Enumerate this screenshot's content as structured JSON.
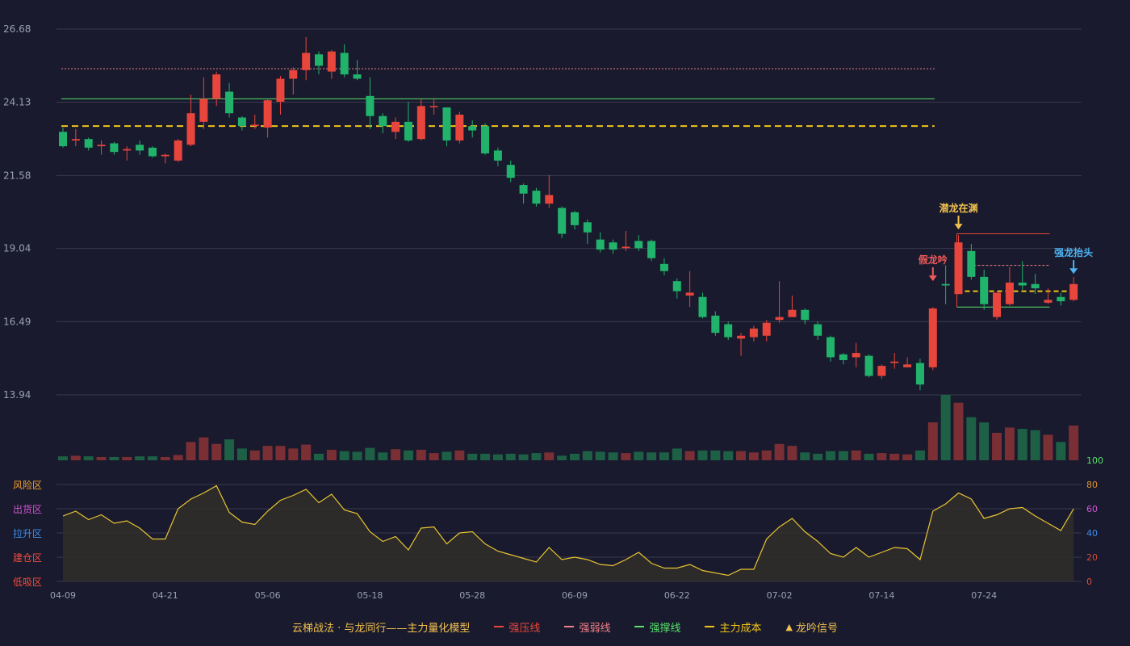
{
  "colors": {
    "background": "#191a2d",
    "grid": "#3a3b4f",
    "axis_text": "#9aa0b0",
    "up": "#e8453c",
    "down": "#21b36b",
    "vol_up": "#7a2f35",
    "vol_down": "#1d6045",
    "strong_pressure": "#e8453c",
    "weak_line": "#f0808a",
    "support_line": "#57e06a",
    "main_cost": "#f2c417",
    "signal": "#f2c14e",
    "osc_line": "#e8c531",
    "osc_fill": "#302c2a"
  },
  "chart_data": {
    "type": "candlestick",
    "y_ticks": [
      "26.68",
      "24.13",
      "21.58",
      "19.04",
      "16.49",
      "13.94"
    ],
    "ylim": [
      13.94,
      26.68
    ],
    "x_ticks": [
      {
        "index": 0,
        "label": "04-09"
      },
      {
        "index": 8,
        "label": "04-21"
      },
      {
        "index": 16,
        "label": "05-06"
      },
      {
        "index": 24,
        "label": "05-18"
      },
      {
        "index": 32,
        "label": "05-28"
      },
      {
        "index": 40,
        "label": "06-09"
      },
      {
        "index": 48,
        "label": "06-22"
      },
      {
        "index": 56,
        "label": "07-02"
      },
      {
        "index": 64,
        "label": "07-14"
      },
      {
        "index": 72,
        "label": "07-24"
      }
    ],
    "candles": [
      [
        23.1,
        22.6,
        23.25,
        22.55
      ],
      [
        22.8,
        22.85,
        23.2,
        22.6
      ],
      [
        22.85,
        22.55,
        22.9,
        22.45
      ],
      [
        22.6,
        22.65,
        22.8,
        22.3
      ],
      [
        22.7,
        22.4,
        22.75,
        22.3
      ],
      [
        22.45,
        22.5,
        22.6,
        22.1
      ],
      [
        22.65,
        22.45,
        22.8,
        22.3
      ],
      [
        22.55,
        22.25,
        22.6,
        22.2
      ],
      [
        22.25,
        22.3,
        22.35,
        22.0
      ],
      [
        22.1,
        22.8,
        22.85,
        22.05
      ],
      [
        22.65,
        23.75,
        24.4,
        22.6
      ],
      [
        23.45,
        24.25,
        25.0,
        23.2
      ],
      [
        24.25,
        25.1,
        25.2,
        24.0
      ],
      [
        24.5,
        23.75,
        24.8,
        23.6
      ],
      [
        23.6,
        23.3,
        23.65,
        23.15
      ],
      [
        23.35,
        23.35,
        23.7,
        23.2
      ],
      [
        23.25,
        24.2,
        24.25,
        22.9
      ],
      [
        24.15,
        24.95,
        25.05,
        23.7
      ],
      [
        24.95,
        25.25,
        25.35,
        24.4
      ],
      [
        25.25,
        25.85,
        26.4,
        24.9
      ],
      [
        25.8,
        25.4,
        25.9,
        25.1
      ],
      [
        25.2,
        25.9,
        25.95,
        24.95
      ],
      [
        25.85,
        25.1,
        26.15,
        25.0
      ],
      [
        25.1,
        24.95,
        25.6,
        24.9
      ],
      [
        24.35,
        23.65,
        25.0,
        23.2
      ],
      [
        23.65,
        23.3,
        23.75,
        23.05
      ],
      [
        23.1,
        23.45,
        23.6,
        22.85
      ],
      [
        23.45,
        22.8,
        24.15,
        22.75
      ],
      [
        22.85,
        24.0,
        24.25,
        22.8
      ],
      [
        24.0,
        24.0,
        24.25,
        23.7
      ],
      [
        23.95,
        22.8,
        23.95,
        22.6
      ],
      [
        22.8,
        23.7,
        23.8,
        22.7
      ],
      [
        23.3,
        23.15,
        23.5,
        22.9
      ],
      [
        23.3,
        22.35,
        23.4,
        22.3
      ],
      [
        22.45,
        22.1,
        22.55,
        21.9
      ],
      [
        21.95,
        21.5,
        22.1,
        21.35
      ],
      [
        21.25,
        20.95,
        21.3,
        20.6
      ],
      [
        21.05,
        20.6,
        21.15,
        20.5
      ],
      [
        20.6,
        20.9,
        21.6,
        20.45
      ],
      [
        20.45,
        19.55,
        20.5,
        19.4
      ],
      [
        20.3,
        19.85,
        20.35,
        19.7
      ],
      [
        19.95,
        19.6,
        20.05,
        19.2
      ],
      [
        19.35,
        19.0,
        19.6,
        18.9
      ],
      [
        19.25,
        19.0,
        19.35,
        18.85
      ],
      [
        19.05,
        19.1,
        19.65,
        18.95
      ],
      [
        19.3,
        19.05,
        19.5,
        18.95
      ],
      [
        19.3,
        18.7,
        19.35,
        18.6
      ],
      [
        18.5,
        18.25,
        18.7,
        18.1
      ],
      [
        17.9,
        17.55,
        18.0,
        17.3
      ],
      [
        17.4,
        17.5,
        18.25,
        17.0
      ],
      [
        17.35,
        16.65,
        17.5,
        16.6
      ],
      [
        16.7,
        16.1,
        16.85,
        16.0
      ],
      [
        16.4,
        15.95,
        16.5,
        15.85
      ],
      [
        15.9,
        16.0,
        16.1,
        15.3
      ],
      [
        15.95,
        16.25,
        16.35,
        15.8
      ],
      [
        16.0,
        16.45,
        16.55,
        15.8
      ],
      [
        16.55,
        16.65,
        17.9,
        16.45
      ],
      [
        16.65,
        16.9,
        17.4,
        16.65
      ],
      [
        16.9,
        16.55,
        16.95,
        16.4
      ],
      [
        16.4,
        16.0,
        16.5,
        15.85
      ],
      [
        15.95,
        15.25,
        16.0,
        15.1
      ],
      [
        15.35,
        15.15,
        15.4,
        15.0
      ],
      [
        15.25,
        15.4,
        15.75,
        14.9
      ],
      [
        15.3,
        14.6,
        15.35,
        14.55
      ],
      [
        14.6,
        14.95,
        15.0,
        14.5
      ],
      [
        15.05,
        15.1,
        15.4,
        14.85
      ],
      [
        14.9,
        15.0,
        15.25,
        14.9
      ],
      [
        15.05,
        14.3,
        15.2,
        14.1
      ],
      [
        14.9,
        16.95,
        17.0,
        14.8
      ],
      [
        17.8,
        17.75,
        18.45,
        17.1
      ],
      [
        17.45,
        19.25,
        19.5,
        17.45
      ],
      [
        18.95,
        18.05,
        19.2,
        17.95
      ],
      [
        18.05,
        17.1,
        18.3,
        16.9
      ],
      [
        16.65,
        17.5,
        17.5,
        16.55
      ],
      [
        17.1,
        17.85,
        18.4,
        17.05
      ],
      [
        17.85,
        17.75,
        18.6,
        17.6
      ],
      [
        17.8,
        17.65,
        18.15,
        17.45
      ],
      [
        17.15,
        17.25,
        17.65,
        17.1
      ],
      [
        17.35,
        17.2,
        17.5,
        17.05
      ],
      [
        17.25,
        17.8,
        18.05,
        17.2
      ]
    ],
    "volume": [
      6,
      7,
      6,
      5,
      5,
      5,
      6,
      6,
      5,
      8,
      28,
      35,
      25,
      32,
      18,
      15,
      22,
      22,
      18,
      24,
      10,
      16,
      14,
      13,
      19,
      12,
      17,
      15,
      16,
      11,
      13,
      15,
      10,
      10,
      9,
      10,
      9,
      11,
      12,
      7,
      10,
      14,
      13,
      12,
      11,
      13,
      12,
      12,
      18,
      14,
      15,
      15,
      14,
      14,
      12,
      15,
      25,
      22,
      12,
      10,
      14,
      14,
      15,
      10,
      11,
      10,
      9,
      15,
      58,
      100,
      88,
      66,
      58,
      42,
      50,
      48,
      46,
      39,
      28,
      53
    ],
    "volume_axis_max": "100",
    "osc_y_ticks": [
      "80",
      "60",
      "40",
      "20",
      "0"
    ],
    "osc_tick_colors": [
      "#e0922a",
      "#d455d4",
      "#3d8ef0",
      "#cf4b3d",
      "#e74c3c"
    ],
    "osc_zones": [
      "风险区",
      "出货区",
      "拉升区",
      "建仓区",
      "低吸区"
    ],
    "osc_zone_colors": [
      "#f2a032",
      "#d455d4",
      "#3d8ef0",
      "#f24b3d",
      "#f24b3d"
    ],
    "osc_values": [
      54,
      58,
      51,
      55,
      48,
      50,
      44,
      35,
      35,
      60,
      68,
      73,
      79,
      57,
      49,
      47,
      58,
      67,
      71,
      76,
      65,
      72,
      59,
      56,
      41,
      33,
      37,
      26,
      44,
      45,
      31,
      40,
      41,
      31,
      25,
      22,
      19,
      16,
      28,
      18,
      20,
      18,
      14,
      13,
      18,
      24,
      15,
      11,
      11,
      14,
      9,
      7,
      5,
      10,
      10,
      35,
      45,
      52,
      41,
      33,
      23,
      20,
      28,
      20,
      24,
      28,
      27,
      18,
      58,
      64,
      73,
      68,
      52,
      55,
      60,
      61,
      54,
      48,
      42,
      60
    ],
    "lines": {
      "strong_pressure": {
        "y": 25.3,
        "from": 0,
        "to": 68
      },
      "support": {
        "y": 24.25,
        "from": 0,
        "to": 68
      },
      "main_cost": {
        "y": 23.3,
        "from": 0,
        "to": 68
      },
      "pressure2": {
        "y": 19.55,
        "from": 70,
        "to": 77
      },
      "weak2": {
        "y": 18.45,
        "from": 71,
        "to": 77
      },
      "support2": {
        "y": 17.0,
        "from": 70,
        "to": 77
      },
      "cost2": {
        "y": 17.55,
        "from": 70,
        "to": 79
      }
    },
    "signals": [
      {
        "index": 68,
        "label": "假龙吟",
        "y": 18.1,
        "color": "#f05a5a",
        "shape": "down"
      },
      {
        "index": 70,
        "label": "潜龙在渊",
        "y": 19.9,
        "color": "#f2c14e",
        "shape": "down"
      },
      {
        "index": 79,
        "label": "强龙抬头",
        "y": 18.35,
        "color": "#4fb5f5",
        "shape": "down"
      }
    ]
  },
  "legend": {
    "title": "云梯战法 · 与龙同行——主力量化模型",
    "items": [
      {
        "label": "强压线",
        "color": "#e8453c",
        "style": "solid",
        "name": "legend-strong-pressure"
      },
      {
        "label": "强弱线",
        "color": "#f0808a",
        "style": "dash",
        "name": "legend-weak-line"
      },
      {
        "label": "强撑线",
        "color": "#57e06a",
        "style": "solid",
        "name": "legend-support-line"
      },
      {
        "label": "主力成本",
        "color": "#f2c417",
        "style": "dash",
        "name": "legend-main-cost"
      },
      {
        "label": "龙吟信号",
        "color": "#f2c14e",
        "style": "tri",
        "name": "legend-signal"
      }
    ]
  }
}
